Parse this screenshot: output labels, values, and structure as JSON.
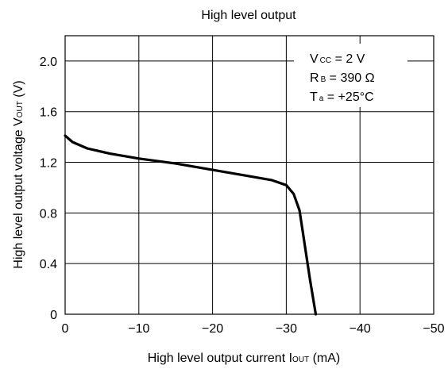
{
  "chart_data": {
    "type": "line",
    "title": "High level output",
    "xlabel": {
      "prefix": "High level output current I",
      "sub": "OUT",
      "suffix": " (mA)"
    },
    "ylabel": {
      "prefix": "High level output voltage  V",
      "sub": "OUT",
      "suffix": " (V)"
    },
    "xlim": [
      0,
      -50
    ],
    "ylim": [
      0,
      2.2
    ],
    "grid": true,
    "x_ticks": [
      0,
      -10,
      -20,
      -30,
      -40,
      -50
    ],
    "x_tick_labels": [
      "0",
      "−10",
      "−20",
      "−30",
      "−40",
      "−50"
    ],
    "y_ticks": [
      0,
      0.4,
      0.8,
      1.2,
      1.6,
      2.0
    ],
    "y_tick_labels": [
      "0",
      "0.4",
      "0.8",
      "1.2",
      "1.6",
      "2.0"
    ],
    "annotations": [
      {
        "main": "V",
        "sub": "CC",
        "rest": " = 2 V"
      },
      {
        "main": "R",
        "sub": "B",
        "rest": " = 390 Ω"
      },
      {
        "main": "T",
        "sub": "a",
        "rest": " = +25°C"
      }
    ],
    "series": [
      {
        "x": [
          0,
          -1,
          -3,
          -6,
          -10,
          -15,
          -20,
          -25,
          -28,
          -30,
          -31,
          -31.8,
          -32.5,
          -33.2,
          -34
        ],
        "y": [
          1.41,
          1.36,
          1.31,
          1.27,
          1.23,
          1.19,
          1.14,
          1.09,
          1.06,
          1.02,
          0.95,
          0.82,
          0.55,
          0.28,
          0
        ]
      }
    ]
  }
}
